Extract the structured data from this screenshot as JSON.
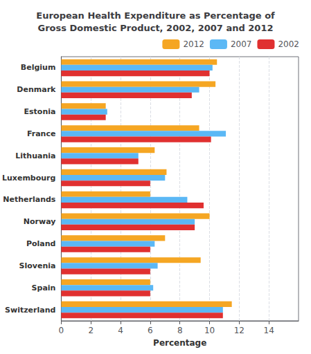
{
  "chart_data": {
    "type": "bar",
    "orientation": "horizontal",
    "title": "European Health Expenditure as Percentage of\nGross Domestic Product, 2002, 2007 and 2012",
    "categories": [
      "Switzerland",
      "Spain",
      "Slovenia",
      "Poland",
      "Norway",
      "Netherlands",
      "Luxembourg",
      "Lithuania",
      "France",
      "Estonia",
      "Denmark",
      "Belgium"
    ],
    "series": [
      {
        "name": "2012",
        "color": "#F5A623",
        "values": [
          11.5,
          6.0,
          9.4,
          7.0,
          10.0,
          6.0,
          7.1,
          6.3,
          9.3,
          3.0,
          10.4,
          10.5
        ]
      },
      {
        "name": "2007",
        "color": "#5BB8F5",
        "values": [
          10.9,
          6.2,
          6.5,
          6.3,
          9.0,
          8.5,
          7.0,
          5.2,
          11.1,
          3.1,
          9.3,
          10.2
        ]
      },
      {
        "name": "2002",
        "color": "#E03030",
        "values": [
          10.9,
          6.0,
          6.0,
          6.0,
          9.0,
          9.6,
          6.0,
          5.2,
          10.1,
          3.0,
          8.8,
          10.0
        ]
      }
    ],
    "xlabel": "Percentage",
    "xlim": [
      0,
      16
    ],
    "xticks": [
      0,
      2,
      4,
      6,
      8,
      10,
      12,
      14
    ],
    "grid": true,
    "legend": "upper right"
  }
}
